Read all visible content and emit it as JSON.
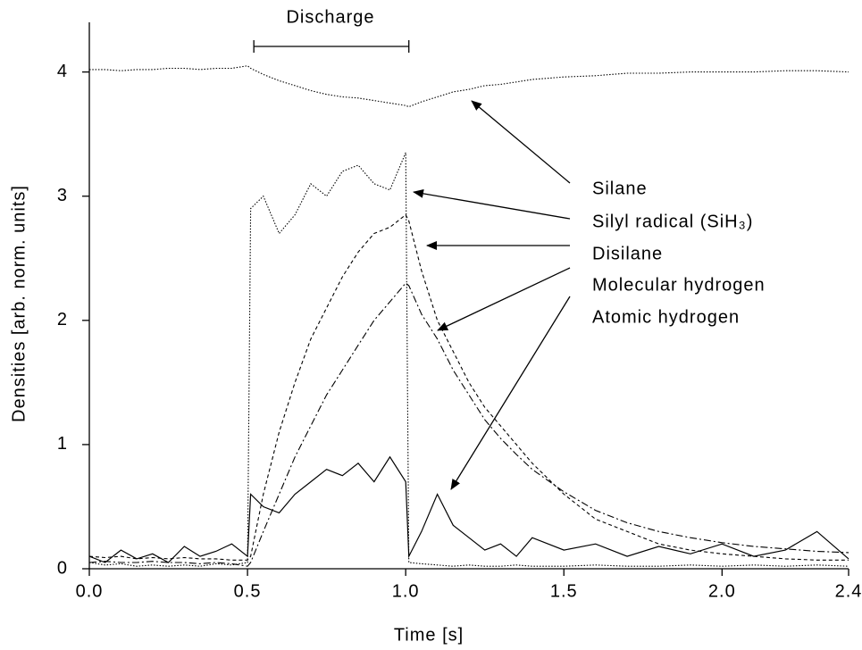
{
  "chart_data": {
    "type": "line",
    "xlabel": "Time [s]",
    "ylabel": "Densities [arb. norm. units]",
    "annotation": "Discharge",
    "discharge_span": [
      0.52,
      1.01
    ],
    "xlim": [
      0,
      2.4
    ],
    "ylim": [
      0,
      4.4
    ],
    "xticks": [
      {
        "value": 0,
        "label": "0.0"
      },
      0.5,
      {
        "value": 1,
        "label": "1.0"
      },
      1.5,
      {
        "value": 2,
        "label": "2.0"
      },
      2.4
    ],
    "yticks": [
      0,
      1,
      2,
      3,
      4
    ],
    "x": [
      0,
      0.05,
      0.1,
      0.15,
      0.2,
      0.25,
      0.3,
      0.35,
      0.4,
      0.45,
      0.5,
      0.51,
      0.55,
      0.6,
      0.65,
      0.7,
      0.75,
      0.8,
      0.85,
      0.9,
      0.95,
      1.0,
      1.01,
      1.05,
      1.1,
      1.15,
      1.2,
      1.25,
      1.3,
      1.35,
      1.4,
      1.5,
      1.6,
      1.7,
      1.8,
      1.9,
      2.0,
      2.1,
      2.2,
      2.3,
      2.4
    ],
    "series": [
      {
        "name": "Silane",
        "color": "#000000",
        "style": "dotted",
        "values": [
          4.02,
          4.02,
          4.01,
          4.02,
          4.02,
          4.03,
          4.03,
          4.02,
          4.03,
          4.03,
          4.05,
          4.03,
          3.98,
          3.93,
          3.89,
          3.85,
          3.82,
          3.8,
          3.79,
          3.77,
          3.75,
          3.73,
          3.72,
          3.76,
          3.8,
          3.84,
          3.86,
          3.89,
          3.9,
          3.92,
          3.94,
          3.96,
          3.97,
          3.99,
          3.99,
          4.0,
          4.0,
          4.0,
          4.01,
          4.01,
          4.0
        ]
      },
      {
        "name": "Silyl radical (SiH₃)",
        "color": "#000000",
        "style": "dotted",
        "values": [
          0.05,
          0.03,
          0.04,
          0.02,
          0.03,
          0.02,
          0.03,
          0.02,
          0.04,
          0.03,
          0.05,
          2.9,
          3.0,
          2.7,
          2.85,
          3.1,
          3.0,
          3.2,
          3.25,
          3.1,
          3.05,
          3.35,
          0.05,
          0.04,
          0.03,
          0.02,
          0.03,
          0.02,
          0.02,
          0.03,
          0.02,
          0.02,
          0.03,
          0.02,
          0.02,
          0.03,
          0.02,
          0.03,
          0.02,
          0.03,
          0.02
        ]
      },
      {
        "name": "Disilane",
        "color": "#000000",
        "style": "dashed",
        "values": [
          0.1,
          0.09,
          0.1,
          0.08,
          0.09,
          0.08,
          0.09,
          0.08,
          0.08,
          0.07,
          0.07,
          0.1,
          0.6,
          1.1,
          1.5,
          1.85,
          2.1,
          2.35,
          2.55,
          2.7,
          2.75,
          2.85,
          2.8,
          2.4,
          2.0,
          1.75,
          1.5,
          1.3,
          1.15,
          1.0,
          0.85,
          0.6,
          0.4,
          0.3,
          0.2,
          0.15,
          0.12,
          0.1,
          0.08,
          0.07,
          0.07
        ]
      },
      {
        "name": "Molecular hydrogen",
        "color": "#000000",
        "style": "dashdot",
        "values": [
          0.05,
          0.06,
          0.05,
          0.05,
          0.06,
          0.05,
          0.05,
          0.04,
          0.05,
          0.04,
          0.02,
          0.05,
          0.3,
          0.6,
          0.9,
          1.15,
          1.4,
          1.6,
          1.8,
          2.0,
          2.15,
          2.3,
          2.28,
          2.05,
          1.85,
          1.6,
          1.4,
          1.2,
          1.05,
          0.92,
          0.8,
          0.62,
          0.47,
          0.37,
          0.3,
          0.25,
          0.21,
          0.18,
          0.16,
          0.14,
          0.13
        ]
      },
      {
        "name": "Atomic hydrogen",
        "color": "#000000",
        "style": "solid",
        "values": [
          0.1,
          0.05,
          0.15,
          0.08,
          0.12,
          0.05,
          0.18,
          0.1,
          0.14,
          0.2,
          0.1,
          0.6,
          0.5,
          0.45,
          0.6,
          0.7,
          0.8,
          0.75,
          0.85,
          0.7,
          0.9,
          0.7,
          0.1,
          0.3,
          0.6,
          0.35,
          0.25,
          0.15,
          0.2,
          0.1,
          0.25,
          0.15,
          0.2,
          0.1,
          0.18,
          0.12,
          0.2,
          0.1,
          0.15,
          0.3,
          0.08
        ]
      }
    ]
  }
}
